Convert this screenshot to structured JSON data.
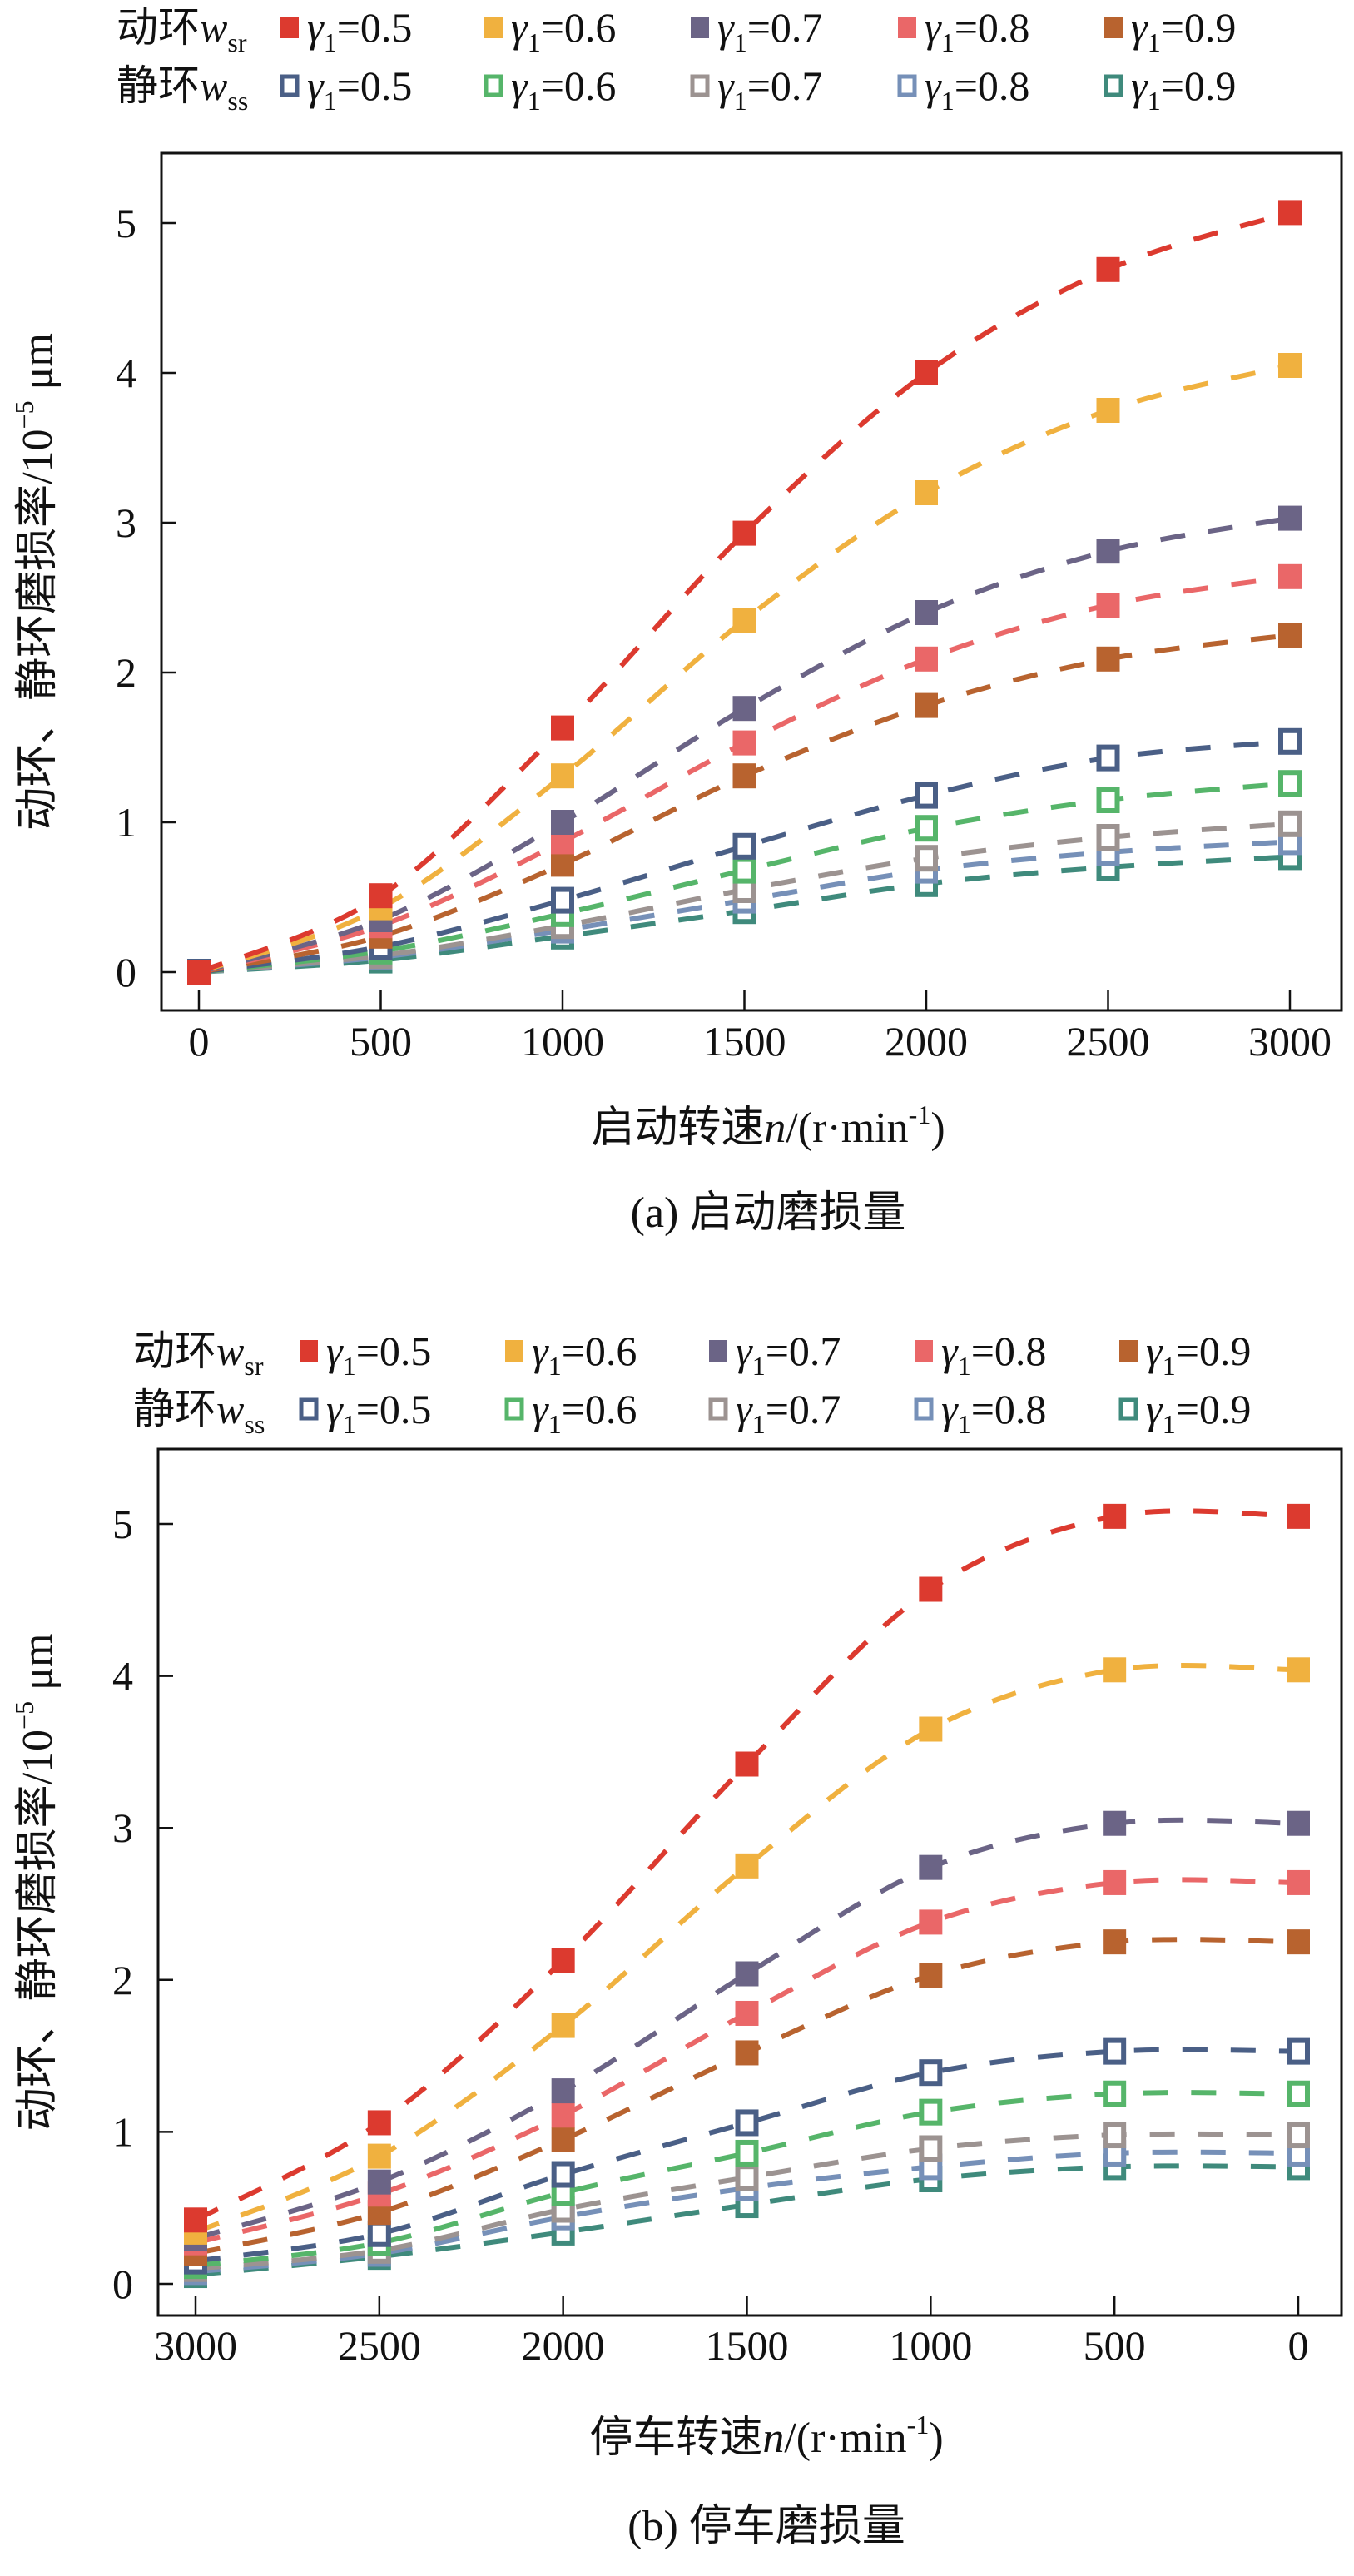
{
  "chart_data": [
    {
      "type": "line",
      "panel": "a",
      "caption": "(a) 启动磨损量",
      "xlabel": {
        "prefix": "启动转速",
        "var": "n",
        "unit": "/(r·min",
        "sup": "-1",
        "close": ")"
      },
      "ylabel": {
        "text": "动环、静环磨损率/10",
        "sup": "−5",
        "unit": " μm"
      },
      "x": [
        0,
        500,
        1000,
        1500,
        2000,
        2500,
        3000
      ],
      "x_ticks": [
        "0",
        "500",
        "1000",
        "1500",
        "2000",
        "2500",
        "3000"
      ],
      "x_direction": "ascending",
      "y_ticks": [
        "0",
        "1",
        "2",
        "3",
        "4",
        "5"
      ],
      "ylim": [
        -0.2,
        5.45
      ],
      "grid": false,
      "legend_position": "top",
      "legend_groups": [
        {
          "label": "动环",
          "var": "w",
          "sub": "sr",
          "marker": "filled-square"
        },
        {
          "label": "静环",
          "var": "w",
          "sub": "ss",
          "marker": "hollow-square"
        }
      ],
      "series": [
        {
          "group": "动环 w_sr",
          "name": "γ1=0.5",
          "gamma": "0.5",
          "color": "#dc3a2f",
          "filled": true,
          "values": [
            0,
            0.51,
            1.63,
            2.93,
            4.0,
            4.69,
            5.07
          ]
        },
        {
          "group": "动环 w_sr",
          "name": "γ1=0.6",
          "gamma": "0.6",
          "color": "#f0b13f",
          "filled": true,
          "values": [
            0,
            0.43,
            1.31,
            2.35,
            3.2,
            3.75,
            4.05
          ]
        },
        {
          "group": "动环 w_sr",
          "name": "γ1=0.7",
          "gamma": "0.7",
          "color": "#6b6486",
          "filled": true,
          "values": [
            0,
            0.35,
            1.0,
            1.76,
            2.4,
            2.81,
            3.03
          ]
        },
        {
          "group": "动环 w_sr",
          "name": "γ1=0.8",
          "gamma": "0.8",
          "color": "#ea6768",
          "filled": true,
          "values": [
            0,
            0.31,
            0.87,
            1.53,
            2.09,
            2.45,
            2.64
          ]
        },
        {
          "group": "动环 w_sr",
          "name": "γ1=0.9",
          "gamma": "0.9",
          "color": "#b8632f",
          "filled": true,
          "values": [
            0,
            0.24,
            0.72,
            1.31,
            1.78,
            2.09,
            2.25
          ]
        },
        {
          "group": "静环 w_ss",
          "name": "γ1=0.5",
          "gamma": "0.5",
          "color": "#4a5f86",
          "filled": false,
          "values": [
            0,
            0.17,
            0.48,
            0.84,
            1.18,
            1.43,
            1.54
          ]
        },
        {
          "group": "静环 w_ss",
          "name": "γ1=0.6",
          "gamma": "0.6",
          "color": "#56b56a",
          "filled": false,
          "values": [
            0,
            0.14,
            0.39,
            0.68,
            0.96,
            1.15,
            1.26
          ]
        },
        {
          "group": "静环 w_ss",
          "name": "γ1=0.7",
          "gamma": "0.7",
          "color": "#9c9391",
          "filled": false,
          "values": [
            0,
            0.11,
            0.31,
            0.55,
            0.76,
            0.9,
            0.99
          ]
        },
        {
          "group": "静环 w_ss",
          "name": "γ1=0.8",
          "gamma": "0.8",
          "color": "#7690b8",
          "filled": false,
          "values": [
            0,
            0.1,
            0.28,
            0.48,
            0.68,
            0.8,
            0.87
          ]
        },
        {
          "group": "静环 w_ss",
          "name": "γ1=0.9",
          "gamma": "0.9",
          "color": "#3f8a7c",
          "filled": false,
          "values": [
            0,
            0.08,
            0.24,
            0.41,
            0.59,
            0.7,
            0.77
          ]
        }
      ]
    },
    {
      "type": "line",
      "panel": "b",
      "caption": "(b) 停车磨损量",
      "xlabel": {
        "prefix": "停车转速",
        "var": "n",
        "unit": "/(r·min",
        "sup": "-1",
        "close": ")"
      },
      "ylabel": {
        "text": "动环、静环磨损率/10",
        "sup": "−5",
        "unit": " μm"
      },
      "x": [
        3000,
        2500,
        2000,
        1500,
        1000,
        500,
        0
      ],
      "x_ticks": [
        "3000",
        "2500",
        "2000",
        "1500",
        "1000",
        "500",
        "0"
      ],
      "x_direction": "descending",
      "y_ticks": [
        "0",
        "1",
        "2",
        "3",
        "4",
        "5"
      ],
      "ylim": [
        -0.2,
        5.5
      ],
      "grid": false,
      "legend_position": "top",
      "legend_groups": [
        {
          "label": "动环",
          "var": "w",
          "sub": "sr",
          "marker": "filled-square"
        },
        {
          "label": "静环",
          "var": "w",
          "sub": "ss",
          "marker": "hollow-square"
        }
      ],
      "series": [
        {
          "group": "动环 w_sr",
          "name": "γ1=0.5",
          "gamma": "0.5",
          "color": "#dc3a2f",
          "filled": true,
          "values": [
            0.42,
            1.06,
            2.13,
            3.42,
            4.57,
            5.05,
            5.05
          ]
        },
        {
          "group": "动环 w_sr",
          "name": "γ1=0.6",
          "gamma": "0.6",
          "color": "#f0b13f",
          "filled": true,
          "values": [
            0.34,
            0.84,
            1.7,
            2.75,
            3.65,
            4.04,
            4.04
          ]
        },
        {
          "group": "动环 w_sr",
          "name": "γ1=0.7",
          "gamma": "0.7",
          "color": "#6b6486",
          "filled": true,
          "values": [
            0.3,
            0.67,
            1.27,
            2.04,
            2.74,
            3.03,
            3.03
          ]
        },
        {
          "group": "动环 w_sr",
          "name": "γ1=0.8",
          "gamma": "0.8",
          "color": "#ea6768",
          "filled": true,
          "values": [
            0.27,
            0.59,
            1.11,
            1.78,
            2.38,
            2.64,
            2.64
          ]
        },
        {
          "group": "动环 w_sr",
          "name": "γ1=0.9",
          "gamma": "0.9",
          "color": "#b8632f",
          "filled": true,
          "values": [
            0.2,
            0.47,
            0.95,
            1.52,
            2.03,
            2.25,
            2.25
          ]
        },
        {
          "group": "静环 w_ss",
          "name": "γ1=0.5",
          "gamma": "0.5",
          "color": "#4a5f86",
          "filled": false,
          "values": [
            0.15,
            0.33,
            0.72,
            1.06,
            1.39,
            1.53,
            1.53
          ]
        },
        {
          "group": "静环 w_ss",
          "name": "γ1=0.6",
          "gamma": "0.6",
          "color": "#56b56a",
          "filled": false,
          "values": [
            0.12,
            0.27,
            0.6,
            0.86,
            1.13,
            1.25,
            1.25
          ]
        },
        {
          "group": "静环 w_ss",
          "name": "γ1=0.7",
          "gamma": "0.7",
          "color": "#9c9391",
          "filled": false,
          "values": [
            0.1,
            0.22,
            0.49,
            0.7,
            0.89,
            0.98,
            0.98
          ]
        },
        {
          "group": "静环 w_ss",
          "name": "γ1=0.8",
          "gamma": "0.8",
          "color": "#7690b8",
          "filled": false,
          "values": [
            0.08,
            0.2,
            0.44,
            0.63,
            0.77,
            0.86,
            0.86
          ]
        },
        {
          "group": "静环 w_ss",
          "name": "γ1=0.9",
          "gamma": "0.9",
          "color": "#3f8a7c",
          "filled": false,
          "values": [
            0.06,
            0.18,
            0.34,
            0.52,
            0.69,
            0.77,
            0.77
          ]
        }
      ]
    }
  ]
}
